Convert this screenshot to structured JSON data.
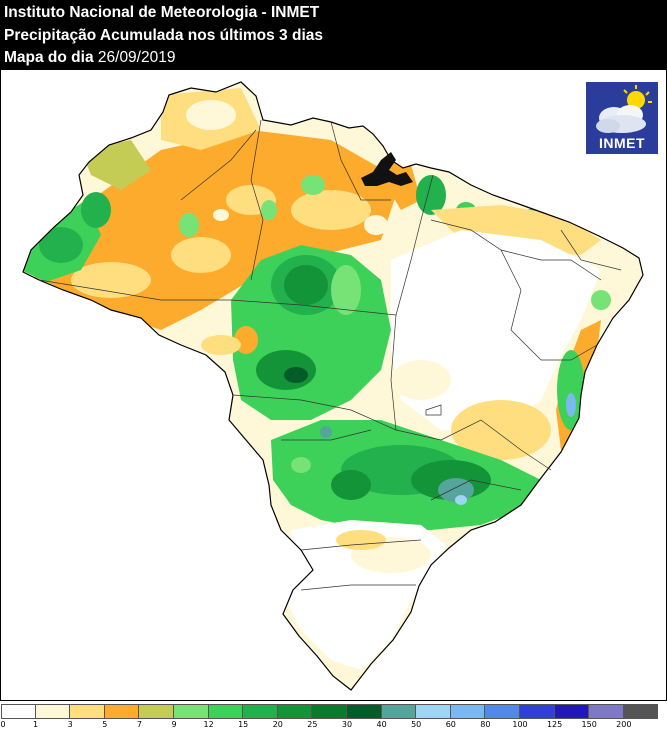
{
  "header": {
    "institute": "Instituto Nacional de Meteorologia - INMET",
    "product": "Precipitação Acumulada nos últimos 3 dias",
    "date_prefix": "Mapa do dia",
    "date_value": "26/09/2019"
  },
  "logo": {
    "text": "INMET",
    "icon": "sun-cloud-icon"
  },
  "legend": {
    "unit": "",
    "ticks": [
      "0",
      "1",
      "3",
      "5",
      "7",
      "9",
      "12",
      "15",
      "20",
      "25",
      "30",
      "40",
      "50",
      "60",
      "80",
      "100",
      "125",
      "150",
      "200"
    ],
    "colors": [
      "#ffffff",
      "#fff8d8",
      "#ffde80",
      "#fcab2d",
      "#c5cc55",
      "#77e377",
      "#3ed15a",
      "#22b14c",
      "#139438",
      "#0a7a2d",
      "#045c28",
      "#56a59c",
      "#9fd4f3",
      "#7ab8ef",
      "#5288e8",
      "#2f3fd8",
      "#2018b8",
      "#7f79c5",
      "#555555"
    ]
  },
  "map": {
    "title": "Brazil precipitation",
    "region_colors": {
      "dry": "#ffffff",
      "light": "#fff8d8",
      "yellow": "#ffde80",
      "orange": "#fcab2d",
      "olive": "#c5cc55",
      "light_green": "#77e377",
      "green": "#3ed15a",
      "mid_green": "#22b14c",
      "dark_green": "#139438",
      "forest": "#0a7a2d",
      "deep_green": "#045c28",
      "teal": "#56a59c",
      "light_blue": "#9fd4f3",
      "blue": "#7ab8ef"
    }
  }
}
